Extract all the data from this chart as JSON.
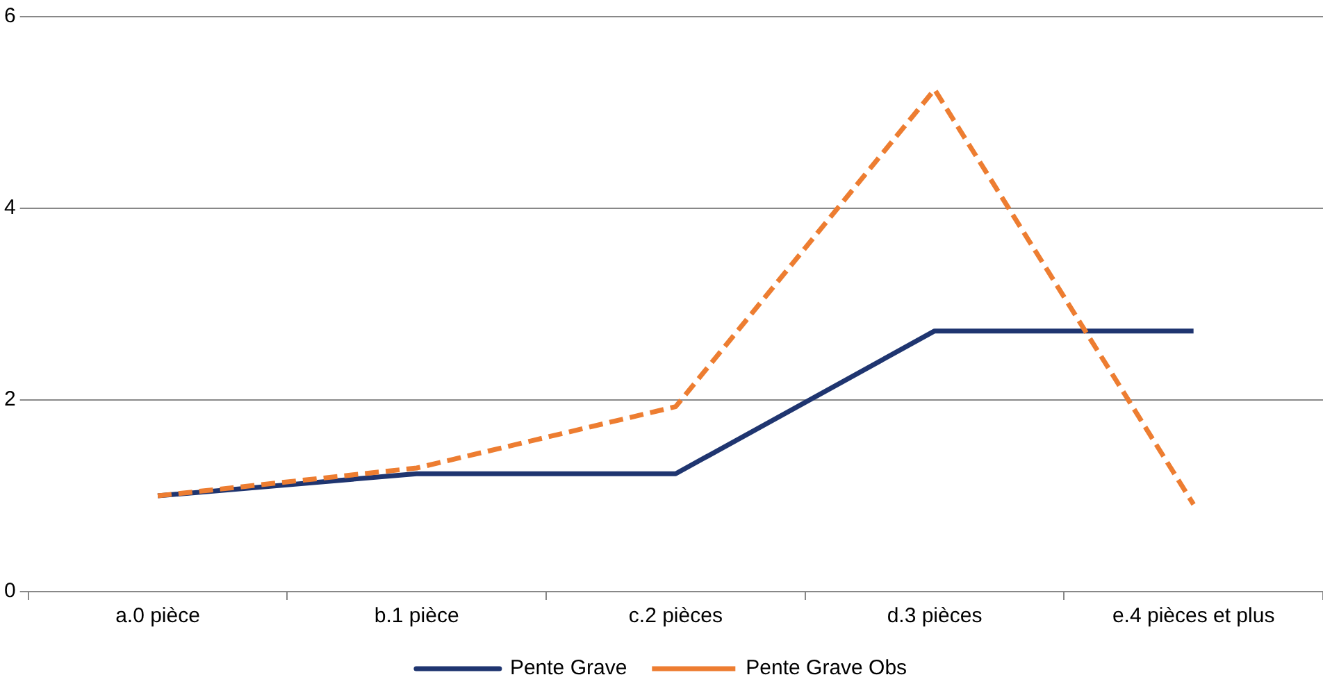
{
  "chart_data": {
    "type": "line",
    "categories": [
      "a.0 pièce",
      "b.1 pièce",
      "c.2 pièces",
      "d.3 pièces",
      "e.4 pièces et plus"
    ],
    "series": [
      {
        "name": "Pente Grave",
        "color": "#1f3570",
        "values": [
          1.0,
          1.23,
          1.23,
          2.72,
          2.72
        ],
        "line_style": "solid"
      },
      {
        "name": "Pente Grave Obs",
        "color": "#ed7d31",
        "values": [
          1.0,
          1.29,
          1.93,
          5.24,
          0.91
        ],
        "line_style": "dashed"
      }
    ],
    "ylim": [
      0,
      6
    ],
    "yticks": [
      0,
      2,
      4,
      6
    ],
    "grid": "y",
    "legend": "bottom",
    "marker": "none"
  }
}
